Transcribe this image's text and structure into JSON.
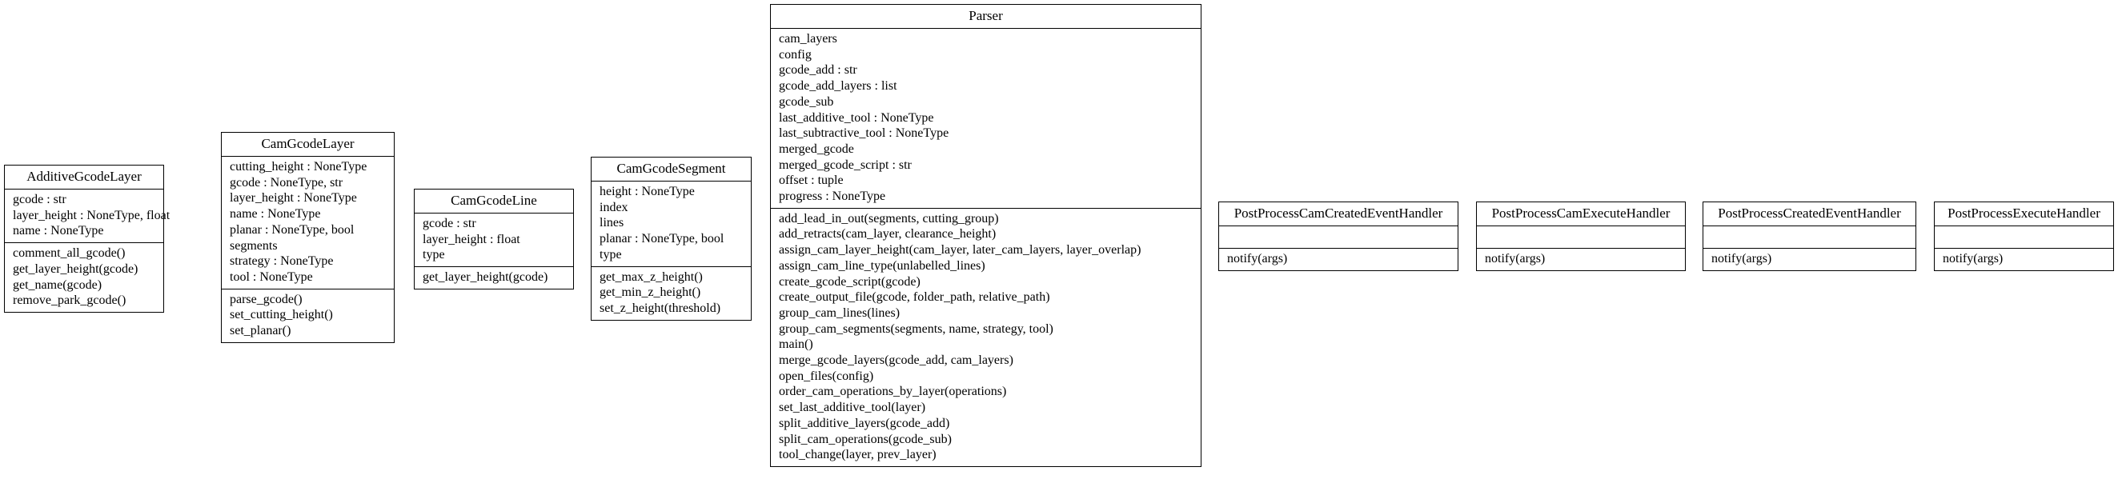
{
  "classes": [
    {
      "id": "AdditiveGcodeLayer",
      "name": "AdditiveGcodeLayer",
      "attributes": [
        "gcode : str",
        "layer_height : NoneType, float",
        "name : NoneType"
      ],
      "methods": [
        "comment_all_gcode()",
        "get_layer_height(gcode)",
        "get_name(gcode)",
        "remove_park_gcode()"
      ]
    },
    {
      "id": "CamGcodeLayer",
      "name": "CamGcodeLayer",
      "attributes": [
        "cutting_height : NoneType",
        "gcode : NoneType, str",
        "layer_height : NoneType",
        "name : NoneType",
        "planar : NoneType, bool",
        "segments",
        "strategy : NoneType",
        "tool : NoneType"
      ],
      "methods": [
        "parse_gcode()",
        "set_cutting_height()",
        "set_planar()"
      ]
    },
    {
      "id": "CamGcodeLine",
      "name": "CamGcodeLine",
      "attributes": [
        "gcode : str",
        "layer_height : float",
        "type"
      ],
      "methods": [
        "get_layer_height(gcode)"
      ]
    },
    {
      "id": "CamGcodeSegment",
      "name": "CamGcodeSegment",
      "attributes": [
        "height : NoneType",
        "index",
        "lines",
        "planar : NoneType, bool",
        "type"
      ],
      "methods": [
        "get_max_z_height()",
        "get_min_z_height()",
        "set_z_height(threshold)"
      ]
    },
    {
      "id": "Parser",
      "name": "Parser",
      "attributes": [
        "cam_layers",
        "config",
        "gcode_add : str",
        "gcode_add_layers : list",
        "gcode_sub",
        "last_additive_tool : NoneType",
        "last_subtractive_tool : NoneType",
        "merged_gcode",
        "merged_gcode_script : str",
        "offset : tuple",
        "progress : NoneType"
      ],
      "methods": [
        "add_lead_in_out(segments, cutting_group)",
        "add_retracts(cam_layer, clearance_height)",
        "assign_cam_layer_height(cam_layer, later_cam_layers, layer_overlap)",
        "assign_cam_line_type(unlabelled_lines)",
        "create_gcode_script(gcode)",
        "create_output_file(gcode, folder_path, relative_path)",
        "group_cam_lines(lines)",
        "group_cam_segments(segments, name, strategy, tool)",
        "main()",
        "merge_gcode_layers(gcode_add, cam_layers)",
        "open_files(config)",
        "order_cam_operations_by_layer(operations)",
        "set_last_additive_tool(layer)",
        "split_additive_layers(gcode_add)",
        "split_cam_operations(gcode_sub)",
        "tool_change(layer, prev_layer)"
      ]
    },
    {
      "id": "PostProcessCamCreatedEventHandler",
      "name": "PostProcessCamCreatedEventHandler",
      "attributes": [],
      "methods": [
        "notify(args)"
      ]
    },
    {
      "id": "PostProcessCamExecuteHandler",
      "name": "PostProcessCamExecuteHandler",
      "attributes": [],
      "methods": [
        "notify(args)"
      ]
    },
    {
      "id": "PostProcessCreatedEventHandler",
      "name": "PostProcessCreatedEventHandler",
      "attributes": [],
      "methods": [
        "notify(args)"
      ]
    },
    {
      "id": "PostProcessExecuteHandler",
      "name": "PostProcessExecuteHandler",
      "attributes": [],
      "methods": [
        "notify(args)"
      ]
    }
  ]
}
